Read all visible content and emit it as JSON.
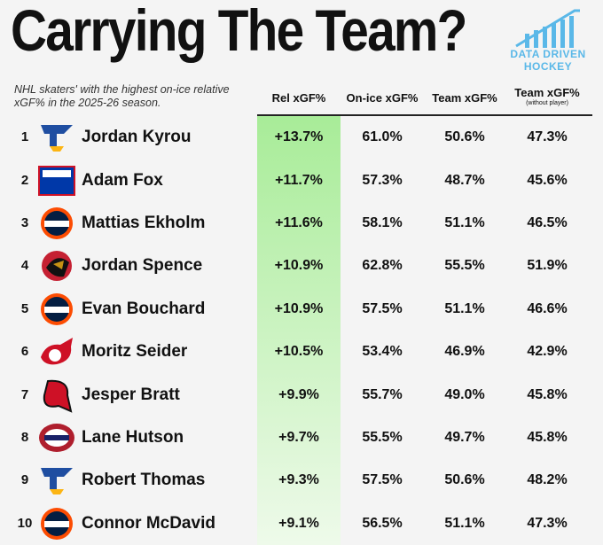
{
  "header": {
    "title": "Carrying The Team?",
    "subtitle": "NHL skaters' with the highest on-ice relative xGF% in the 2025-26 season.",
    "logo": [
      "DATA DRIVEN",
      "HOCKEY"
    ]
  },
  "table": {
    "columns": [
      "Rel xGF%",
      "On-ice xGF%",
      "Team xGF%",
      "Team xGF%"
    ],
    "column_note": "(without player)",
    "rows": [
      [
        "1",
        "Jordan Kyrou",
        "+13.7%",
        "61.0%",
        "50.6%",
        "47.3%"
      ],
      [
        "2",
        "Adam Fox",
        "+11.7%",
        "57.3%",
        "48.7%",
        "45.6%"
      ],
      [
        "3",
        "Mattias Ekholm",
        "+11.6%",
        "58.1%",
        "51.1%",
        "46.5%"
      ],
      [
        "4",
        "Jordan Spence",
        "+10.9%",
        "62.8%",
        "55.5%",
        "51.9%"
      ],
      [
        "5",
        "Evan Bouchard",
        "+10.9%",
        "57.5%",
        "51.1%",
        "46.6%"
      ],
      [
        "6",
        "Moritz Seider",
        "+10.5%",
        "53.4%",
        "46.9%",
        "42.9%"
      ],
      [
        "7",
        "Jesper Bratt",
        "+9.9%",
        "55.7%",
        "49.0%",
        "45.8%"
      ],
      [
        "8",
        "Lane Hutson",
        "+9.7%",
        "55.5%",
        "49.7%",
        "45.8%"
      ],
      [
        "9",
        "Robert Thomas",
        "+9.3%",
        "57.5%",
        "50.6%",
        "48.2%"
      ],
      [
        "10",
        "Connor McDavid",
        "+9.1%",
        "56.5%",
        "51.1%",
        "47.3%"
      ]
    ]
  }
}
